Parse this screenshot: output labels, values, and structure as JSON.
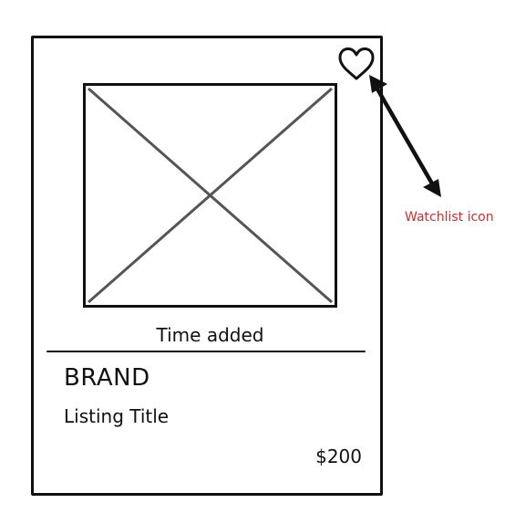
{
  "card": {
    "time_added": "Time added",
    "brand": "BRAND",
    "listing_title": "Listing Title",
    "price": "$200",
    "watchlist_icon": "heart-icon"
  },
  "annotation": {
    "label": "Watchlist icon",
    "color": "#d32f2f"
  }
}
